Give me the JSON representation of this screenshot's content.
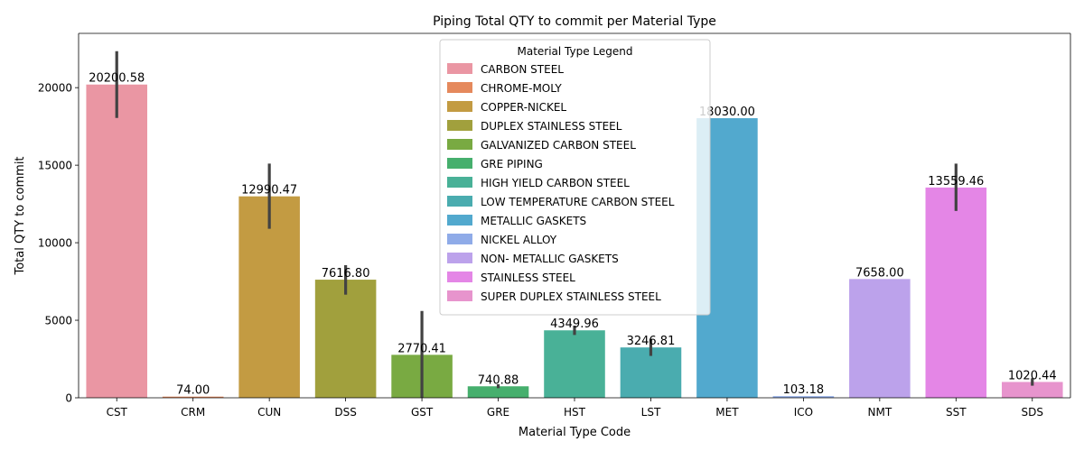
{
  "chart_data": {
    "type": "bar",
    "title": "Piping Total QTY to commit per Material Type",
    "xlabel": "Material Type Code",
    "ylabel": "Total QTY to commit",
    "ylim": [
      0,
      23500
    ],
    "yticks": [
      0,
      5000,
      10000,
      15000,
      20000
    ],
    "grid": false,
    "legend": {
      "title": "Material Type Legend",
      "placement": "top-center",
      "entries": [
        "CARBON STEEL",
        "CHROME-MOLY",
        "COPPER-NICKEL",
        "DUPLEX STAINLESS STEEL",
        "GALVANIZED CARBON STEEL",
        "GRE PIPING",
        "HIGH YIELD CARBON STEEL",
        "LOW TEMPERATURE CARBON STEEL",
        "METALLIC GASKETS",
        "NICKEL ALLOY",
        "NON- METALLIC GASKETS",
        "STAINLESS STEEL",
        "SUPER DUPLEX STAINLESS STEEL"
      ]
    },
    "categories": [
      "CST",
      "CRM",
      "CUN",
      "DSS",
      "GST",
      "GRE",
      "HST",
      "LST",
      "MET",
      "ICO",
      "NMT",
      "SST",
      "SDS"
    ],
    "values": [
      20200.58,
      74.0,
      12990.47,
      7616.8,
      2770.41,
      740.88,
      4349.96,
      3246.81,
      18030.0,
      103.18,
      7658.0,
      13559.46,
      1020.44
    ],
    "labels": [
      "20200.58",
      "74.00",
      "12990.47",
      "7616.80",
      "2770.41",
      "740.88",
      "4349.96",
      "3246.81",
      "18030.00",
      "103.18",
      "7658.00",
      "13559.46",
      "1020.44"
    ],
    "error_bars": [
      [
        18050,
        22350
      ],
      null,
      [
        10900,
        15100
      ],
      [
        6650,
        8550
      ],
      [
        0,
        5600
      ],
      [
        620,
        870
      ],
      [
        4050,
        4650
      ],
      [
        2700,
        3800
      ],
      null,
      null,
      null,
      [
        12050,
        15100
      ],
      [
        780,
        1260
      ]
    ],
    "colors": [
      "#ea96a3",
      "#e5895c",
      "#c39b42",
      "#a1a03d",
      "#79aa42",
      "#46af6d",
      "#49b197",
      "#4aacaf",
      "#52a9ce",
      "#8fabe8",
      "#bca2eb",
      "#e486e6",
      "#e794cd"
    ]
  }
}
